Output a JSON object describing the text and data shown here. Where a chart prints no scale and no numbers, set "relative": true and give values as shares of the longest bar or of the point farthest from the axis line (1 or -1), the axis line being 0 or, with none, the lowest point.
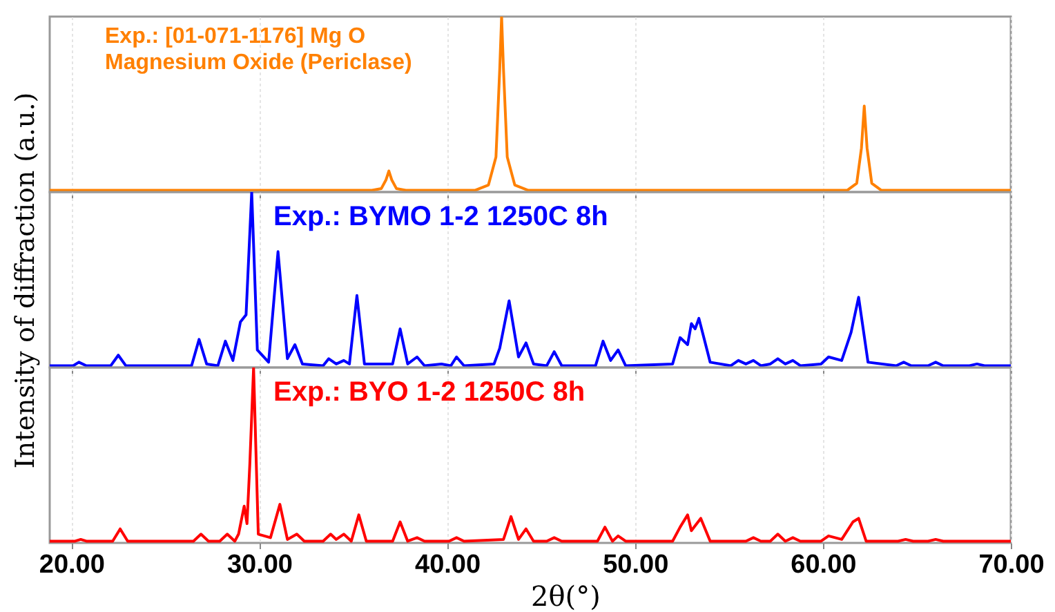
{
  "chart_data": [
    {
      "type": "line",
      "relative": true,
      "grid": "x",
      "tick_labels": false,
      "xlim": [
        18.85,
        70
      ],
      "xticks": [
        {
          "value": 20,
          "label": null
        },
        {
          "value": 30,
          "label": null
        },
        {
          "value": 40,
          "label": null
        },
        {
          "value": 50,
          "label": null
        },
        {
          "value": 60,
          "label": null
        },
        {
          "value": 70,
          "label": null
        }
      ],
      "series": [
        {
          "name": "Exp.: [01-071-1176] Mg O Magnesium Oxide (Periclase)",
          "color": "#ff8000",
          "x": [
            18.85,
            36.0,
            36.5,
            36.75,
            36.9,
            37.05,
            37.3,
            37.8,
            41.5,
            42.2,
            42.6,
            42.8,
            42.9,
            43.0,
            43.2,
            43.6,
            44.3,
            61.3,
            61.8,
            62.05,
            62.2,
            62.35,
            62.6,
            63.1,
            70
          ],
          "values": [
            0.01,
            0.01,
            0.02,
            0.07,
            0.12,
            0.07,
            0.02,
            0.01,
            0.01,
            0.04,
            0.2,
            0.7,
            1,
            0.7,
            0.2,
            0.04,
            0.01,
            0.01,
            0.05,
            0.25,
            0.49,
            0.25,
            0.05,
            0.01,
            0.01
          ]
        }
      ]
    },
    {
      "type": "line",
      "relative": true,
      "grid": "x",
      "tick_labels": false,
      "ylabel": "Intensity of diffraction (a.u.)",
      "xlim": [
        18.85,
        70
      ],
      "xticks": [
        {
          "value": 20,
          "label": null
        },
        {
          "value": 30,
          "label": null
        },
        {
          "value": 40,
          "label": null
        },
        {
          "value": 50,
          "label": null
        },
        {
          "value": 60,
          "label": null
        },
        {
          "value": 70,
          "label": null
        }
      ],
      "series": [
        {
          "name": "Exp.: BYMO 1-2 1250C 8h",
          "color": "#0000ff",
          "x": [
            18.85,
            20.1,
            20.4,
            20.8,
            22.1,
            22.5,
            22.9,
            26.4,
            26.8,
            27.2,
            27.8,
            28.2,
            28.6,
            29.0,
            29.3,
            29.6,
            29.9,
            30.5,
            31.0,
            31.5,
            31.9,
            32.3,
            33.4,
            33.7,
            34.1,
            34.5,
            34.8,
            35.2,
            35.6,
            37.1,
            37.5,
            37.9,
            38.4,
            38.8,
            39.7,
            40.2,
            40.5,
            40.9,
            42.5,
            42.8,
            43.3,
            43.8,
            44.2,
            44.6,
            45.3,
            45.7,
            46.1,
            47.9,
            48.3,
            48.7,
            49.1,
            49.5,
            52.0,
            52.4,
            52.8,
            53.0,
            53.2,
            53.4,
            54.0,
            55.1,
            55.5,
            55.9,
            56.3,
            56.7,
            57.2,
            57.6,
            58.0,
            58.4,
            58.8,
            59.9,
            60.3,
            61.0,
            61.5,
            61.9,
            62.4,
            63.9,
            64.3,
            64.7,
            65.6,
            66.0,
            66.4,
            67.8,
            68.2,
            68.6,
            70
          ],
          "values": [
            0.01,
            0.01,
            0.03,
            0.01,
            0.01,
            0.07,
            0.01,
            0.01,
            0.16,
            0.02,
            0.01,
            0.15,
            0.04,
            0.26,
            0.3,
            1,
            0.1,
            0.03,
            0.66,
            0.05,
            0.13,
            0.02,
            0.01,
            0.05,
            0.02,
            0.04,
            0.02,
            0.41,
            0.02,
            0.02,
            0.22,
            0.02,
            0.06,
            0.01,
            0.02,
            0.01,
            0.06,
            0.01,
            0.02,
            0.11,
            0.38,
            0.06,
            0.14,
            0.02,
            0.01,
            0.09,
            0.01,
            0.01,
            0.15,
            0.04,
            0.1,
            0.01,
            0.02,
            0.17,
            0.13,
            0.25,
            0.22,
            0.28,
            0.03,
            0.01,
            0.04,
            0.02,
            0.04,
            0.01,
            0.02,
            0.05,
            0.02,
            0.04,
            0.01,
            0.02,
            0.06,
            0.04,
            0.2,
            0.4,
            0.03,
            0.01,
            0.03,
            0.01,
            0.01,
            0.03,
            0.01,
            0.01,
            0.02,
            0.01,
            0.01
          ]
        }
      ]
    },
    {
      "type": "line",
      "relative": true,
      "grid": "x",
      "tick_labels": "x",
      "xlabel": "2θ(°)",
      "xlim": [
        18.85,
        70
      ],
      "xticks": [
        {
          "value": 20,
          "label": "20.00"
        },
        {
          "value": 30,
          "label": "30.00"
        },
        {
          "value": 40,
          "label": "40.00"
        },
        {
          "value": 50,
          "label": "50.00"
        },
        {
          "value": 60,
          "label": "60.00"
        },
        {
          "value": 70,
          "label": "70.00"
        }
      ],
      "series": [
        {
          "name": "Exp.: BYO 1-2 1250C 8h",
          "color": "#ff0000",
          "x": [
            18.85,
            20.2,
            20.5,
            20.8,
            22.2,
            22.6,
            23.0,
            26.5,
            26.9,
            27.3,
            27.9,
            28.3,
            28.7,
            28.9,
            29.2,
            29.35,
            29.5,
            29.7,
            29.95,
            30.6,
            31.1,
            31.5,
            32.0,
            32.4,
            33.4,
            33.8,
            34.1,
            34.5,
            34.9,
            35.3,
            35.7,
            37.1,
            37.5,
            37.9,
            38.4,
            38.8,
            40.1,
            40.5,
            40.9,
            43.0,
            43.4,
            43.8,
            44.2,
            44.6,
            45.3,
            45.7,
            46.1,
            48.0,
            48.4,
            48.8,
            49.1,
            49.5,
            52.0,
            52.4,
            52.8,
            53.0,
            53.5,
            54.0,
            55.9,
            56.3,
            56.7,
            57.2,
            57.6,
            58.0,
            58.4,
            58.8,
            59.9,
            60.3,
            61.0,
            61.6,
            61.9,
            62.3,
            64.0,
            64.4,
            64.8,
            65.6,
            66.0,
            66.4,
            70
          ],
          "values": [
            0.01,
            0.01,
            0.02,
            0.01,
            0.01,
            0.08,
            0.01,
            0.01,
            0.05,
            0.01,
            0.01,
            0.05,
            0.01,
            0.05,
            0.21,
            0.11,
            0.45,
            1,
            0.05,
            0.03,
            0.22,
            0.02,
            0.05,
            0.01,
            0.01,
            0.05,
            0.02,
            0.05,
            0.01,
            0.16,
            0.01,
            0.01,
            0.12,
            0.01,
            0.03,
            0.01,
            0.01,
            0.03,
            0.01,
            0.02,
            0.15,
            0.02,
            0.08,
            0.01,
            0.01,
            0.03,
            0.01,
            0.01,
            0.09,
            0.01,
            0.04,
            0.01,
            0.01,
            0.09,
            0.16,
            0.07,
            0.14,
            0.01,
            0.01,
            0.03,
            0.01,
            0.01,
            0.05,
            0.01,
            0.03,
            0.01,
            0.01,
            0.04,
            0.02,
            0.12,
            0.14,
            0.01,
            0.01,
            0.02,
            0.01,
            0.01,
            0.02,
            0.01,
            0.01
          ]
        }
      ]
    }
  ]
}
